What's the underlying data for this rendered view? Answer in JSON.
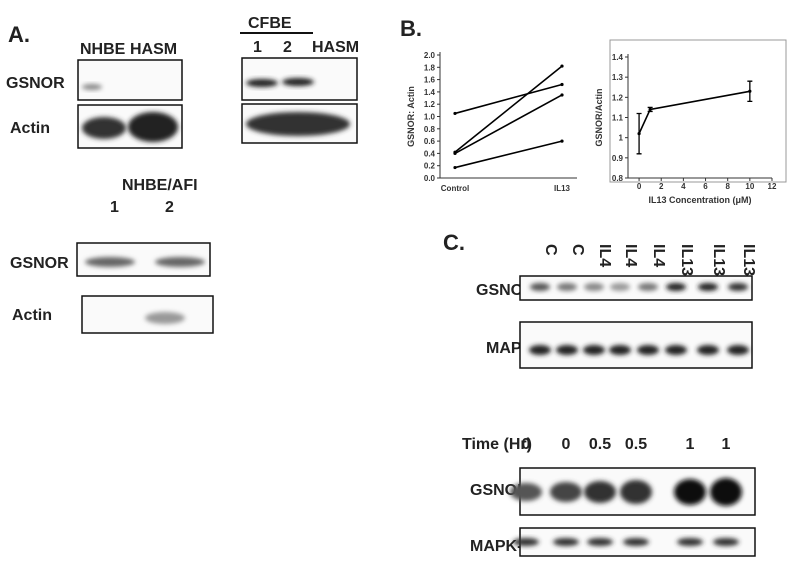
{
  "panel_a": {
    "label": "A.",
    "blot1": {
      "lanes": [
        "NHBE",
        "HASM"
      ],
      "rows": [
        "GSNOR",
        "Actin"
      ]
    },
    "blot2": {
      "group": "CFBE",
      "lanes": [
        "1",
        "2",
        "HASM"
      ]
    },
    "blot3": {
      "group": "NHBE/AFI",
      "lanes": [
        "1",
        "2"
      ],
      "rows": [
        "GSNOR",
        "Actin"
      ]
    }
  },
  "panel_b": {
    "label": "B."
  },
  "panel_c": {
    "label": "C.",
    "blot1": {
      "lanes": [
        "C",
        "C",
        "IL4",
        "IL4",
        "IL4",
        "IL13",
        "IL13",
        "IL13"
      ],
      "rows": [
        "GSNOR-",
        "MAPK-"
      ]
    },
    "blot2": {
      "header": "Time (Hr)",
      "lanes": [
        "0",
        "0",
        "0.5",
        "0.5",
        "1",
        "1"
      ],
      "rows": [
        "GSNOR-",
        "MAPK-"
      ]
    }
  },
  "chart_data": [
    {
      "type": "line",
      "ylabel": "GSNOR: Actin",
      "categories": [
        "Control",
        "IL13"
      ],
      "series": [
        {
          "color": "#000000",
          "values": [
            1.05,
            1.52
          ]
        },
        {
          "color": "#000000",
          "values": [
            0.42,
            1.82
          ]
        },
        {
          "color": "#000000",
          "values": [
            0.4,
            1.35
          ]
        },
        {
          "color": "#000000",
          "values": [
            0.17,
            0.6
          ]
        }
      ],
      "ylim": [
        0,
        2
      ],
      "yticks": [
        {
          "value": 0,
          "label": "0.0"
        },
        0.2,
        0.4,
        0.6,
        0.8,
        {
          "value": 1,
          "label": "1.0"
        },
        1.2,
        1.4,
        1.6,
        1.8,
        {
          "value": 2,
          "label": "2.0"
        }
      ]
    },
    {
      "type": "line",
      "ylabel": "GSNOR/Actin",
      "xlabel": "IL13 Concentration (μM)",
      "x": [
        0,
        1,
        10
      ],
      "series": [
        {
          "color": "#000000",
          "values": [
            1.02,
            1.14,
            1.23
          ],
          "yerr": [
            0.1,
            0.01,
            0.05
          ]
        }
      ],
      "xlim": [
        -1,
        12
      ],
      "xticks": [
        0,
        2,
        4,
        6,
        8,
        10,
        12
      ],
      "ylim": [
        0.8,
        1.4
      ],
      "yticks": [
        0.8,
        0.9,
        1,
        1.1,
        1.2,
        1.3,
        1.4
      ]
    }
  ]
}
